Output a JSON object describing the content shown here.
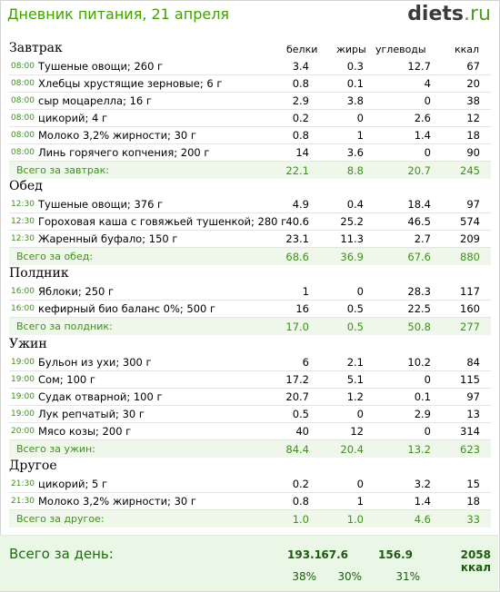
{
  "header": {
    "title": "Дневник питания, 21 апреля",
    "logo_main": "diets",
    "logo_tld": ".ru"
  },
  "columns": {
    "protein": "белки",
    "fat": "жиры",
    "carbs": "углеводы",
    "kcal": "ккал"
  },
  "meals": [
    {
      "title": "Завтрак",
      "items": [
        {
          "time": "08:00",
          "name": "Тушеные овощи; 260 г",
          "p": "3.4",
          "f": "0.3",
          "c": "12.7",
          "k": "67"
        },
        {
          "time": "08:00",
          "name": "Хлебцы хрустящие зерновые; 6 г",
          "p": "0.8",
          "f": "0.1",
          "c": "4",
          "k": "20"
        },
        {
          "time": "08:00",
          "name": "сыр моцарелла; 16 г",
          "p": "2.9",
          "f": "3.8",
          "c": "0",
          "k": "38"
        },
        {
          "time": "08:00",
          "name": "цикорий; 4 г",
          "p": "0.2",
          "f": "0",
          "c": "2.6",
          "k": "12"
        },
        {
          "time": "08:00",
          "name": "Молоко 3,2% жирности; 30 г",
          "p": "0.8",
          "f": "1",
          "c": "1.4",
          "k": "18"
        },
        {
          "time": "08:00",
          "name": "Линь горячего копчения; 200 г",
          "p": "14",
          "f": "3.6",
          "c": "0",
          "k": "90"
        }
      ],
      "total": {
        "label": "Всего за завтрак:",
        "p": "22.1",
        "f": "8.8",
        "c": "20.7",
        "k": "245"
      }
    },
    {
      "title": "Обед",
      "items": [
        {
          "time": "12:30",
          "name": "Тушеные овощи; 376 г",
          "p": "4.9",
          "f": "0.4",
          "c": "18.4",
          "k": "97"
        },
        {
          "time": "12:30",
          "name": "Гороховая каша с говяжьей тушенкой; 280 г",
          "p": "40.6",
          "f": "25.2",
          "c": "46.5",
          "k": "574"
        },
        {
          "time": "12:30",
          "name": "Жаренный буфало; 150 г",
          "p": "23.1",
          "f": "11.3",
          "c": "2.7",
          "k": "209"
        }
      ],
      "total": {
        "label": "Всего за обед:",
        "p": "68.6",
        "f": "36.9",
        "c": "67.6",
        "k": "880"
      }
    },
    {
      "title": "Полдник",
      "items": [
        {
          "time": "16:00",
          "name": "Яблоки; 250 г",
          "p": "1",
          "f": "0",
          "c": "28.3",
          "k": "117"
        },
        {
          "time": "16:00",
          "name": "кефирный био баланс 0%; 500 г",
          "p": "16",
          "f": "0.5",
          "c": "22.5",
          "k": "160"
        }
      ],
      "total": {
        "label": "Всего за полдник:",
        "p": "17.0",
        "f": "0.5",
        "c": "50.8",
        "k": "277"
      }
    },
    {
      "title": "Ужин",
      "items": [
        {
          "time": "19:00",
          "name": "Бульон из ухи; 300 г",
          "p": "6",
          "f": "2.1",
          "c": "10.2",
          "k": "84"
        },
        {
          "time": "19:00",
          "name": "Сом; 100 г",
          "p": "17.2",
          "f": "5.1",
          "c": "0",
          "k": "115"
        },
        {
          "time": "19:00",
          "name": "Судак отварной; 100 г",
          "p": "20.7",
          "f": "1.2",
          "c": "0.1",
          "k": "97"
        },
        {
          "time": "19:00",
          "name": "Лук репчатый; 30 г",
          "p": "0.5",
          "f": "0",
          "c": "2.9",
          "k": "13"
        },
        {
          "time": "20:00",
          "name": "Мясо козы; 200 г",
          "p": "40",
          "f": "12",
          "c": "0",
          "k": "314"
        }
      ],
      "total": {
        "label": "Всего за ужин:",
        "p": "84.4",
        "f": "20.4",
        "c": "13.2",
        "k": "623"
      }
    },
    {
      "title": "Другое",
      "items": [
        {
          "time": "21:30",
          "name": "цикорий; 5 г",
          "p": "0.2",
          "f": "0",
          "c": "3.2",
          "k": "15"
        },
        {
          "time": "21:30",
          "name": "Молоко 3,2% жирности; 30 г",
          "p": "0.8",
          "f": "1",
          "c": "1.4",
          "k": "18"
        }
      ],
      "total": {
        "label": "Всего за другое:",
        "p": "1.0",
        "f": "1.0",
        "c": "4.6",
        "k": "33"
      }
    }
  ],
  "day": {
    "label": "Всего за день:",
    "p": "193.1",
    "f": "67.6",
    "c": "156.9",
    "k": "2058 ккал",
    "p_pct": "38%",
    "f_pct": "30%",
    "c_pct": "31%"
  }
}
